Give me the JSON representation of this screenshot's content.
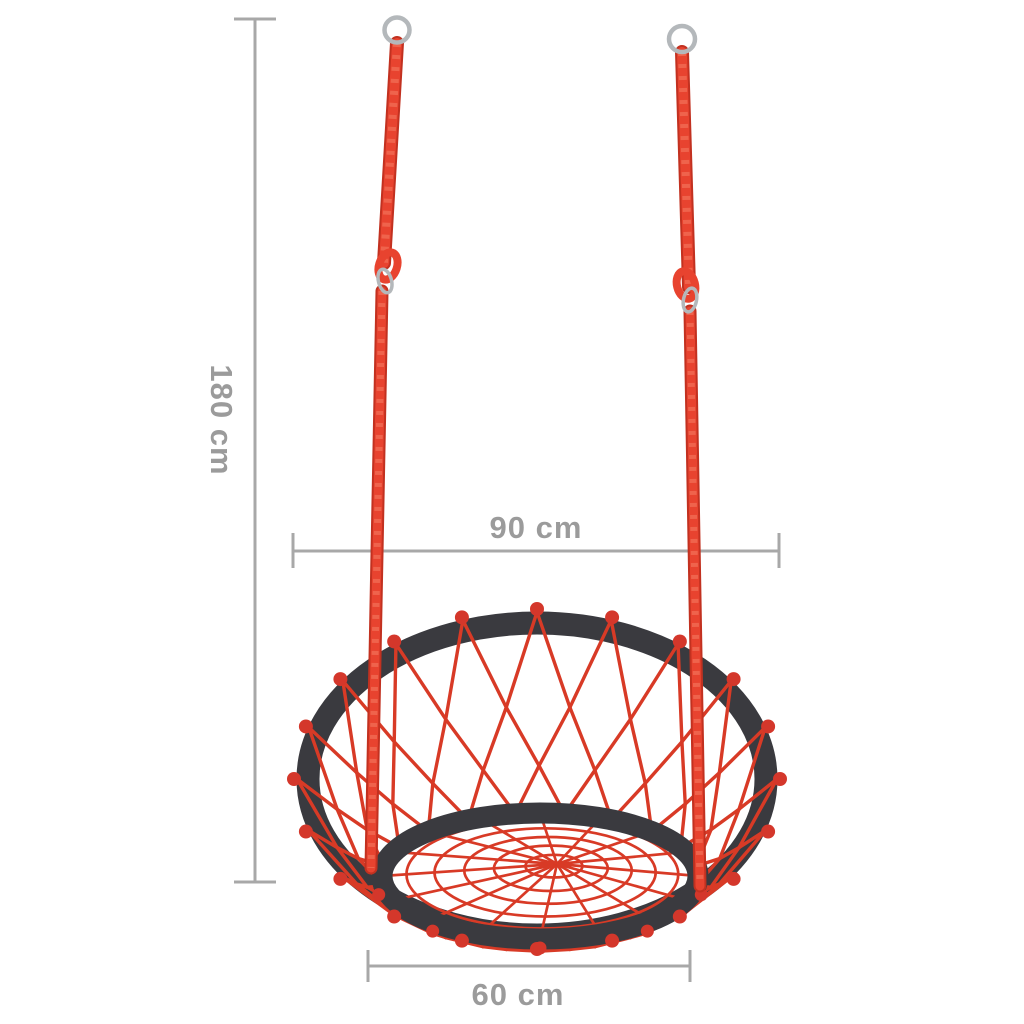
{
  "product_diagram": {
    "dimensions": {
      "height_label": "180 cm",
      "ring_width_label": "90 cm",
      "seat_width_label": "60 cm"
    },
    "colors": {
      "rope_red": "#e8432f",
      "rope_red_dark": "#c23120",
      "rope_red_light": "#f47a61",
      "net_red": "#d83a26",
      "knob_red": "#d4372b",
      "ring_dark": "#3a3a3f",
      "metal_gray": "#b4b8bb",
      "dim_line_gray": "#a8a8a8",
      "dim_text_gray": "#9b9b9b",
      "background": "#ffffff"
    }
  }
}
